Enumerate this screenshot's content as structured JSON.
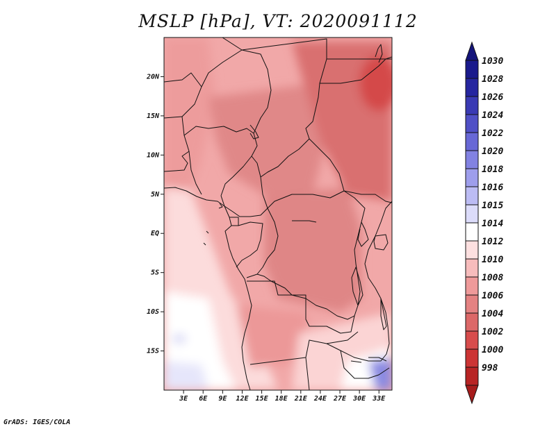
{
  "title": "MSLP [hPa], VT: 2020091112",
  "credit": "GrADS: IGES/COLA",
  "chart_data": {
    "type": "heatmap",
    "variable": "Mean sea level pressure",
    "units": "hPa",
    "valid_time": "2020091112",
    "lon_range": [
      0,
      35
    ],
    "lat_range": [
      -20,
      25
    ],
    "lat_ticks": [
      {
        "value": 20,
        "label": "20N"
      },
      {
        "value": 15,
        "label": "15N"
      },
      {
        "value": 10,
        "label": "10N"
      },
      {
        "value": 5,
        "label": "5N"
      },
      {
        "value": 0,
        "label": "EQ"
      },
      {
        "value": -5,
        "label": "5S"
      },
      {
        "value": -10,
        "label": "10S"
      },
      {
        "value": -15,
        "label": "15S"
      }
    ],
    "lon_ticks": [
      {
        "value": 3,
        "label": "3E"
      },
      {
        "value": 6,
        "label": "6E"
      },
      {
        "value": 9,
        "label": "9E"
      },
      {
        "value": 12,
        "label": "12E"
      },
      {
        "value": 15,
        "label": "15E"
      },
      {
        "value": 18,
        "label": "18E"
      },
      {
        "value": 21,
        "label": "21E"
      },
      {
        "value": 24,
        "label": "24E"
      },
      {
        "value": 27,
        "label": "27E"
      },
      {
        "value": 30,
        "label": "30E"
      },
      {
        "value": 33,
        "label": "33E"
      }
    ],
    "colorbar": {
      "orientation": "vertical",
      "levels": [
        {
          "label": "1030",
          "color": "#1a1a8c"
        },
        {
          "label": "1028",
          "color": "#2626a0"
        },
        {
          "label": "1026",
          "color": "#3a3ab4"
        },
        {
          "label": "1024",
          "color": "#5050c6"
        },
        {
          "label": "1022",
          "color": "#6868d6"
        },
        {
          "label": "1020",
          "color": "#8282e2"
        },
        {
          "label": "1018",
          "color": "#9e9eec"
        },
        {
          "label": "1016",
          "color": "#bcbcf4"
        },
        {
          "label": "1015",
          "color": "#dcdcfa"
        },
        {
          "label": "1014",
          "color": "#ffffff"
        },
        {
          "label": "1012",
          "color": "#fde0e0"
        },
        {
          "label": "1010",
          "color": "#f7bcbc"
        },
        {
          "label": "1008",
          "color": "#ef9a9a"
        },
        {
          "label": "1006",
          "color": "#e48282"
        },
        {
          "label": "1004",
          "color": "#dc6868"
        },
        {
          "label": "1002",
          "color": "#d84c4c"
        },
        {
          "label": "1000",
          "color": "#cc3434"
        },
        {
          "label": "998",
          "color": "#b82424"
        }
      ],
      "max_arrow_color": "#14147a",
      "min_arrow_color": "#a61c1c"
    }
  }
}
